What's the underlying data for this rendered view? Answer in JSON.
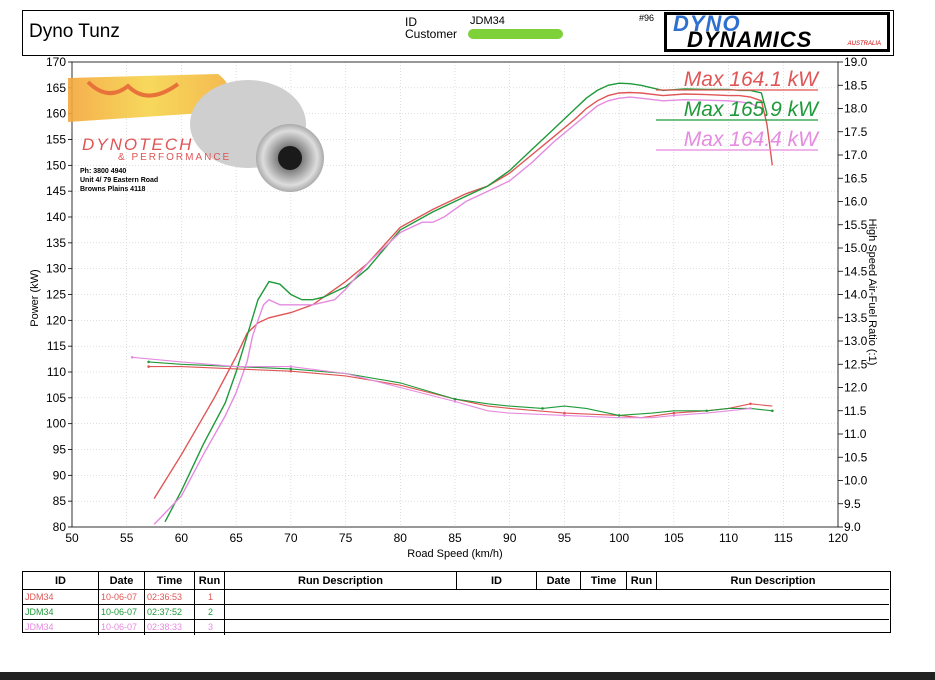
{
  "header": {
    "app_title": "Dyno Tunz",
    "id_label": "ID",
    "id_value": "JDM34",
    "customer_label": "Customer",
    "sheet_number": "#96",
    "logo_top": "DYNO",
    "logo_bottom": "DYNAMICS",
    "logo_sub": "AUSTRALIA"
  },
  "overlay": {
    "brand": "DYNOTECH",
    "brand_sub": "& PERFORMANCE",
    "phone": "Ph: 3800 4940",
    "address_line1": "Unit 4/ 79 Eastern Road",
    "address_line2": "Browns Plains 4118"
  },
  "colors": {
    "run1": "#e05555",
    "run2": "#1f9a3a",
    "run3": "#e58be0",
    "grid": "#bfbfbf"
  },
  "chart_data": {
    "type": "line",
    "xlabel": "Road Speed (km/h)",
    "ylabel": "Power (kW)",
    "y2label": "High Speed Air-Fuel Ratio (:1)",
    "xlim": [
      50,
      120
    ],
    "ylim": [
      80,
      170
    ],
    "y2lim": [
      9.0,
      19.0
    ],
    "x_ticks": [
      50,
      55,
      60,
      65,
      70,
      75,
      80,
      85,
      90,
      95,
      100,
      105,
      110,
      115,
      120
    ],
    "y_ticks": [
      80,
      85,
      90,
      95,
      100,
      105,
      110,
      115,
      120,
      125,
      130,
      135,
      140,
      145,
      150,
      155,
      160,
      165,
      170
    ],
    "y2_ticks": [
      "9.0",
      "9.5",
      "10.0",
      "10.5",
      "11.0",
      "11.5",
      "12.0",
      "12.5",
      "13.0",
      "13.5",
      "14.0",
      "14.5",
      "15.0",
      "15.5",
      "16.0",
      "16.5",
      "17.0",
      "17.5",
      "18.0",
      "18.5",
      "19.0"
    ],
    "grid": true,
    "legend": [
      {
        "label": "Max 164.1 kW",
        "color": "#e05555"
      },
      {
        "label": "Max 165.9 kW",
        "color": "#1f9a3a"
      },
      {
        "label": "Max 164.4 kW",
        "color": "#e58be0"
      }
    ],
    "power_series": [
      {
        "run": "1",
        "color": "#e05555",
        "x": [
          57.5,
          60,
          63,
          65,
          66,
          67,
          68,
          70,
          72,
          75,
          77,
          80,
          83,
          86,
          88,
          90,
          92,
          94,
          96,
          97,
          98,
          99,
          100,
          101,
          102,
          104,
          106,
          108,
          110,
          111,
          112,
          113,
          113.5,
          114
        ],
        "y": [
          85.5,
          94,
          105,
          113,
          117.5,
          119.5,
          120.5,
          121.5,
          123,
          127.5,
          131,
          138,
          141.5,
          144.5,
          146,
          148.5,
          152,
          155.5,
          159,
          161,
          162.5,
          163.5,
          164,
          164.1,
          164,
          163.5,
          163.8,
          163.7,
          163.5,
          163.5,
          163.2,
          162.5,
          158,
          150
        ]
      },
      {
        "run": "2",
        "color": "#1f9a3a",
        "x": [
          58.5,
          60,
          62,
          64,
          65,
          66,
          67,
          68,
          69,
          70,
          71,
          72,
          73,
          75,
          77,
          80,
          83,
          86,
          88,
          90,
          92,
          94,
          96,
          97,
          98,
          99,
          100,
          101,
          102,
          104,
          106,
          108,
          110,
          111,
          112,
          113,
          113.5
        ],
        "y": [
          81,
          87,
          96,
          104,
          110,
          117,
          124,
          127.5,
          127,
          125,
          124,
          124,
          124.5,
          126.5,
          130,
          137.5,
          141,
          144,
          146,
          149,
          153,
          157,
          161,
          163,
          164.5,
          165.5,
          165.9,
          165.8,
          165.5,
          164.5,
          164.8,
          164.7,
          164.7,
          164.5,
          164.5,
          164.0,
          160
        ]
      },
      {
        "run": "3",
        "color": "#e58be0",
        "x": [
          57.5,
          60,
          62,
          64,
          65,
          66,
          66.5,
          67,
          67.5,
          68,
          69,
          70,
          72,
          74,
          75,
          77,
          79,
          80,
          82,
          83,
          84,
          86,
          88,
          90,
          92,
          94,
          96,
          98,
          99,
          100,
          101,
          102,
          104,
          106,
          108,
          110,
          111,
          112,
          113
        ],
        "y": [
          80.5,
          86,
          94,
          101.5,
          106,
          112,
          117,
          120,
          123,
          124,
          123,
          123,
          123,
          124,
          126,
          131,
          135,
          137,
          139,
          139,
          140,
          143,
          145,
          147,
          150.5,
          154.5,
          158,
          161.5,
          162.5,
          163,
          163.2,
          163,
          162.5,
          162.7,
          162.6,
          162.5,
          162.3,
          162.0,
          161.0
        ]
      }
    ],
    "afr_series": [
      {
        "run": "1",
        "color": "#e05555",
        "x": [
          57,
          60,
          65,
          70,
          75,
          80,
          85,
          88,
          90,
          95,
          100,
          102,
          105,
          108,
          110,
          112,
          114
        ],
        "y": [
          12.45,
          12.45,
          12.4,
          12.35,
          12.25,
          12.05,
          11.75,
          11.6,
          11.55,
          11.45,
          11.4,
          11.35,
          11.45,
          11.5,
          11.55,
          11.65,
          11.6
        ]
      },
      {
        "run": "2",
        "color": "#1f9a3a",
        "x": [
          57,
          60,
          65,
          70,
          75,
          80,
          85,
          88,
          90,
          93,
          95,
          97,
          100,
          103,
          105,
          108,
          110,
          112,
          114
        ],
        "y": [
          12.55,
          12.5,
          12.45,
          12.4,
          12.3,
          12.1,
          11.75,
          11.65,
          11.6,
          11.55,
          11.6,
          11.55,
          11.4,
          11.45,
          11.5,
          11.5,
          11.55,
          11.55,
          11.5
        ]
      },
      {
        "run": "3",
        "color": "#e58be0",
        "x": [
          55.5,
          60,
          65,
          70,
          75,
          80,
          85,
          88,
          90,
          95,
          100,
          103,
          105,
          108,
          110,
          112
        ],
        "y": [
          12.65,
          12.55,
          12.45,
          12.45,
          12.3,
          12.0,
          11.7,
          11.5,
          11.45,
          11.4,
          11.35,
          11.35,
          11.4,
          11.45,
          11.5,
          11.55
        ]
      }
    ]
  },
  "table": {
    "headers": [
      "ID",
      "Date",
      "Time",
      "Run",
      "Run Description",
      "ID",
      "Date",
      "Time",
      "Run",
      "Run Description"
    ],
    "rows": [
      {
        "id": "JDM34",
        "date": "10-06-07",
        "time": "02:36:53",
        "run": "1",
        "color": "#e05555"
      },
      {
        "id": "JDM34",
        "date": "10-06-07",
        "time": "02:37:52",
        "run": "2",
        "color": "#1f9a3a"
      },
      {
        "id": "JDM34",
        "date": "10-06-07",
        "time": "02:38:33",
        "run": "3",
        "color": "#e58be0"
      }
    ]
  }
}
